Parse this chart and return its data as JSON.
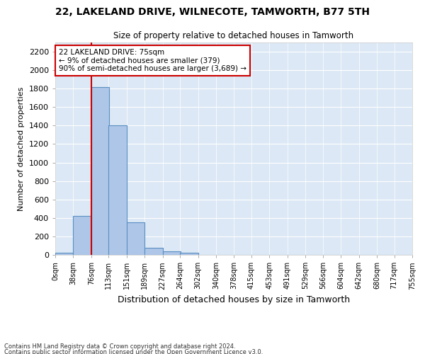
{
  "title": "22, LAKELAND DRIVE, WILNECOTE, TAMWORTH, B77 5TH",
  "subtitle": "Size of property relative to detached houses in Tamworth",
  "xlabel": "Distribution of detached houses by size in Tamworth",
  "ylabel": "Number of detached properties",
  "bin_edges": [
    0,
    38,
    76,
    113,
    151,
    189,
    227,
    264,
    302,
    340,
    378,
    415,
    453,
    491,
    529,
    566,
    604,
    642,
    680,
    717,
    755
  ],
  "bar_heights": [
    20,
    420,
    1820,
    1400,
    350,
    80,
    35,
    20,
    0,
    0,
    0,
    0,
    0,
    0,
    0,
    0,
    0,
    0,
    0,
    0
  ],
  "bar_color": "#aec6e8",
  "bar_edge_color": "#5a8fc2",
  "property_line_x": 76,
  "property_line_color": "#cc0000",
  "annotation_text": "22 LAKELAND DRIVE: 75sqm\n← 9% of detached houses are smaller (379)\n90% of semi-detached houses are larger (3,689) →",
  "annotation_box_color": "#cc0000",
  "ylim": [
    0,
    2300
  ],
  "yticks": [
    0,
    200,
    400,
    600,
    800,
    1000,
    1200,
    1400,
    1600,
    1800,
    2000,
    2200
  ],
  "tick_labels": [
    "0sqm",
    "38sqm",
    "76sqm",
    "113sqm",
    "151sqm",
    "189sqm",
    "227sqm",
    "264sqm",
    "302sqm",
    "340sqm",
    "378sqm",
    "415sqm",
    "453sqm",
    "491sqm",
    "529sqm",
    "566sqm",
    "604sqm",
    "642sqm",
    "680sqm",
    "717sqm",
    "755sqm"
  ],
  "footer_line1": "Contains HM Land Registry data © Crown copyright and database right 2024.",
  "footer_line2": "Contains public sector information licensed under the Open Government Licence v3.0.",
  "bg_color": "#ffffff",
  "plot_bg_color": "#dce8f5"
}
